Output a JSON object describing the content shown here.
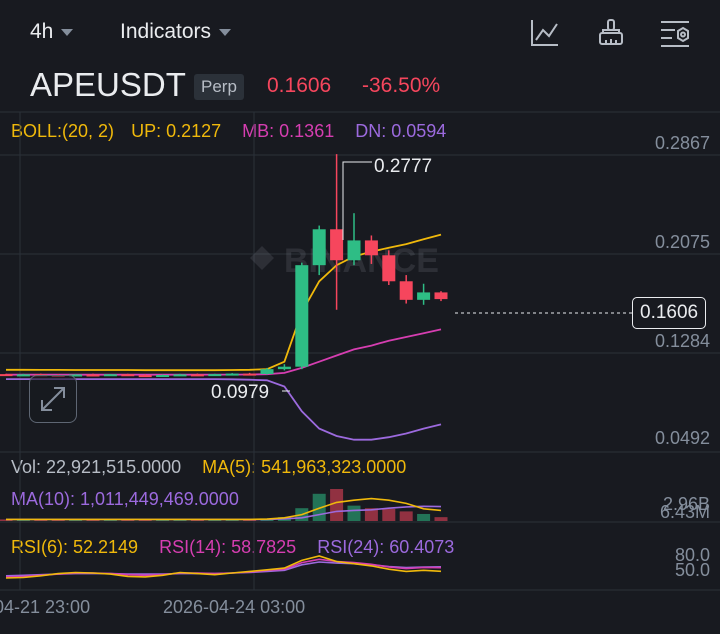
{
  "toolbar": {
    "interval": "4h",
    "indicators_label": "Indicators",
    "icons": [
      "chart-line-icon",
      "brush-icon",
      "settings-icon"
    ]
  },
  "header": {
    "symbol": "APEUSDT",
    "badge": "Perp",
    "price": "0.1606",
    "change": "-36.50%"
  },
  "colors": {
    "up": "#2ebd85",
    "down": "#f6465d",
    "boll_label": "#f0b90b",
    "mb": "#d63eb1",
    "dn": "#9c6ade",
    "background": "#181a20"
  },
  "indicators": {
    "boll": {
      "name": "BOLL:(20, 2)",
      "up": "UP: 0.2127",
      "mb": "MB: 0.1361",
      "dn": "DN: 0.0594"
    },
    "vol": {
      "vol": "Vol: 22,921,515.0000",
      "ma5": "MA(5): 541,963,323.0000",
      "ma10": "MA(10): 1,011,449,469.0000"
    },
    "rsi": {
      "rsi6": "RSI(6): 52.2149",
      "rsi14": "RSI(14): 58.7825",
      "rsi24": "RSI(24): 60.4073"
    }
  },
  "chart_data": {
    "type": "candlestick",
    "price_axis_ticks": [
      "0.2867",
      "0.2075",
      "0.1284",
      "0.0492"
    ],
    "current_price_label": "0.1606",
    "high_annotation": "0.2777",
    "low_annotation": "0.0979",
    "volume_axis_labels": [
      "2.96B",
      "6.43M"
    ],
    "rsi_axis_labels": [
      "80.0",
      "50.0"
    ],
    "time_labels": [
      "04-21 23:00",
      "2026-04-24 03:00"
    ],
    "candles": [
      {
        "o": 0.1,
        "h": 0.1003,
        "l": 0.099,
        "c": 0.0995
      },
      {
        "o": 0.0995,
        "h": 0.1002,
        "l": 0.0989,
        "c": 0.0998
      },
      {
        "o": 0.0998,
        "h": 0.1004,
        "l": 0.099,
        "c": 0.0993
      },
      {
        "o": 0.0993,
        "h": 0.1,
        "l": 0.0985,
        "c": 0.099
      },
      {
        "o": 0.099,
        "h": 0.1,
        "l": 0.0984,
        "c": 0.0997
      },
      {
        "o": 0.0997,
        "h": 0.1004,
        "l": 0.0989,
        "c": 0.0994
      },
      {
        "o": 0.0994,
        "h": 0.1001,
        "l": 0.0986,
        "c": 0.0999
      },
      {
        "o": 0.0999,
        "h": 0.1003,
        "l": 0.0985,
        "c": 0.0992
      },
      {
        "o": 0.0992,
        "h": 0.0999,
        "l": 0.0982,
        "c": 0.0988
      },
      {
        "o": 0.0988,
        "h": 0.0997,
        "l": 0.0979,
        "c": 0.0993
      },
      {
        "o": 0.0993,
        "h": 0.1002,
        "l": 0.0986,
        "c": 0.0998
      },
      {
        "o": 0.0998,
        "h": 0.1005,
        "l": 0.099,
        "c": 0.0995
      },
      {
        "o": 0.0995,
        "h": 0.1003,
        "l": 0.0987,
        "c": 0.1
      },
      {
        "o": 0.1,
        "h": 0.1008,
        "l": 0.0993,
        "c": 0.1004
      },
      {
        "o": 0.1004,
        "h": 0.101,
        "l": 0.0995,
        "c": 0.1001
      },
      {
        "o": 0.1001,
        "h": 0.105,
        "l": 0.0996,
        "c": 0.104
      },
      {
        "o": 0.104,
        "h": 0.108,
        "l": 0.103,
        "c": 0.106
      },
      {
        "o": 0.106,
        "h": 0.19,
        "l": 0.104,
        "c": 0.188
      },
      {
        "o": 0.188,
        "h": 0.22,
        "l": 0.18,
        "c": 0.217
      },
      {
        "o": 0.217,
        "h": 0.2777,
        "l": 0.152,
        "c": 0.192
      },
      {
        "o": 0.192,
        "h": 0.23,
        "l": 0.188,
        "c": 0.208
      },
      {
        "o": 0.208,
        "h": 0.212,
        "l": 0.189,
        "c": 0.196
      },
      {
        "o": 0.196,
        "h": 0.2,
        "l": 0.172,
        "c": 0.175
      },
      {
        "o": 0.175,
        "h": 0.18,
        "l": 0.157,
        "c": 0.16
      },
      {
        "o": 0.16,
        "h": 0.173,
        "l": 0.156,
        "c": 0.166
      },
      {
        "o": 0.166,
        "h": 0.167,
        "l": 0.159,
        "c": 0.1606
      }
    ],
    "boll_up": [
      0.1035,
      0.1035,
      0.1034,
      0.1034,
      0.1033,
      0.1033,
      0.1033,
      0.1033,
      0.1032,
      0.1032,
      0.1032,
      0.1032,
      0.1032,
      0.1033,
      0.1035,
      0.104,
      0.11,
      0.15,
      0.175,
      0.188,
      0.195,
      0.199,
      0.202,
      0.205,
      0.209,
      0.2127
    ],
    "boll_mb": [
      0.0995,
      0.0995,
      0.0995,
      0.0995,
      0.0995,
      0.0995,
      0.0995,
      0.0995,
      0.0995,
      0.0995,
      0.0995,
      0.0995,
      0.0996,
      0.0996,
      0.0997,
      0.0999,
      0.101,
      0.105,
      0.11,
      0.115,
      0.12,
      0.123,
      0.127,
      0.13,
      0.133,
      0.1361
    ],
    "boll_dn": [
      0.096,
      0.096,
      0.096,
      0.096,
      0.096,
      0.096,
      0.096,
      0.096,
      0.096,
      0.096,
      0.096,
      0.096,
      0.096,
      0.0958,
      0.0955,
      0.095,
      0.09,
      0.07,
      0.056,
      0.05,
      0.047,
      0.047,
      0.049,
      0.052,
      0.056,
      0.0594
    ],
    "volume_bars": [
      0.05,
      0.05,
      0.05,
      0.05,
      0.05,
      0.05,
      0.05,
      0.05,
      0.05,
      0.05,
      0.05,
      0.05,
      0.05,
      0.05,
      0.05,
      0.08,
      0.12,
      0.4,
      0.85,
      1.0,
      0.48,
      0.4,
      0.38,
      0.3,
      0.22,
      0.12
    ],
    "volume_ma5": [
      0.05,
      0.05,
      0.05,
      0.05,
      0.05,
      0.05,
      0.05,
      0.05,
      0.05,
      0.05,
      0.05,
      0.05,
      0.05,
      0.05,
      0.05,
      0.06,
      0.1,
      0.2,
      0.4,
      0.58,
      0.65,
      0.7,
      0.65,
      0.55,
      0.38,
      0.33
    ],
    "volume_ma10": [
      0.05,
      0.05,
      0.05,
      0.05,
      0.05,
      0.05,
      0.05,
      0.05,
      0.05,
      0.05,
      0.05,
      0.05,
      0.05,
      0.05,
      0.05,
      0.05,
      0.07,
      0.1,
      0.2,
      0.3,
      0.33,
      0.35,
      0.4,
      0.44,
      0.46,
      0.45
    ],
    "rsi6": [
      40,
      41,
      44,
      48,
      50,
      49,
      47,
      43,
      42,
      45,
      50,
      48,
      46,
      49,
      52,
      55,
      58,
      72,
      80,
      70,
      66,
      62,
      56,
      52,
      54,
      52.2149
    ],
    "rsi14": [
      42,
      43,
      45,
      47,
      49,
      49,
      48,
      46,
      45,
      46,
      49,
      49,
      48,
      49,
      51,
      54,
      56,
      68,
      74,
      70,
      68,
      65,
      60,
      57,
      59,
      58.7825
    ],
    "rsi24": [
      44,
      45,
      46,
      47,
      48,
      48,
      48,
      47,
      47,
      47,
      48,
      48,
      48,
      49,
      50,
      52,
      54,
      64,
      69,
      67,
      66,
      64,
      61,
      59,
      60,
      60.4073
    ]
  }
}
